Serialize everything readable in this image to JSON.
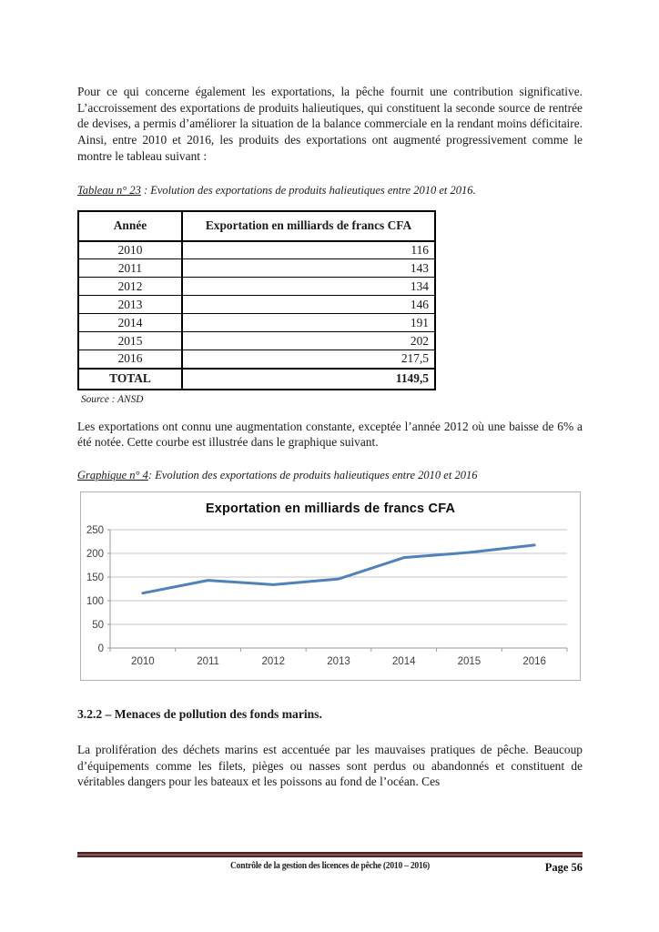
{
  "page": {
    "paragraph1": "Pour ce qui concerne également les exportations, la pêche fournit une contribution significative. L’accroissement des exportations de produits halieutiques, qui constituent la seconde source de rentrée de devises, a permis d’améliorer la situation de la balance commerciale en la rendant moins déficitaire. Ainsi, entre 2010 et 2016, les produits des exportations ont augmenté progressivement comme le montre le tableau suivant :",
    "table_caption": {
      "label": "Tableau n° 23",
      "rest": " : Evolution des exportations de produits halieutiques entre 2010 et 2016."
    },
    "table": {
      "headers": [
        "Année",
        "Exportation en milliards de francs CFA"
      ],
      "rows": [
        {
          "year": "2010",
          "value": "116"
        },
        {
          "year": "2011",
          "value": "143"
        },
        {
          "year": "2012",
          "value": "134"
        },
        {
          "year": "2013",
          "value": "146"
        },
        {
          "year": "2014",
          "value": "191"
        },
        {
          "year": "2015",
          "value": "202"
        },
        {
          "year": "2016",
          "value": "217,5"
        }
      ],
      "total_label": "TOTAL",
      "total_value": "1149,5"
    },
    "source_note": "Source : ANSD",
    "paragraph2": "Les exportations ont connu une augmentation constante, exceptée l’année 2012 où une baisse de 6% a été notée. Cette courbe est illustrée dans le graphique suivant.",
    "chart_caption": {
      "label": "Graphique  n° 4",
      "rest": ": Evolution des exportations de produits halieutiques entre 2010 et 2016"
    },
    "section_heading": "3.2.2 – Menaces de pollution des fonds marins.",
    "paragraph3": "La prolifération des déchets marins est accentuée par les mauvaises pratiques de pêche. Beaucoup d’équipements comme les filets, pièges ou nasses sont perdus ou abandonnés et constituent de véritables dangers pour les bateaux et les poissons au fond de l’océan. Ces",
    "footer": {
      "doc_title": "Contrôle de la gestion des licences de pêche (2010 – 2016)",
      "page_label": "Page 56"
    }
  },
  "chart_data": {
    "type": "line",
    "title": "Exportation en milliards de francs CFA",
    "categories": [
      "2010",
      "2011",
      "2012",
      "2013",
      "2014",
      "2015",
      "2016"
    ],
    "values": [
      116,
      143,
      134,
      146,
      191,
      202,
      217.5
    ],
    "xlabel": "",
    "ylabel": "",
    "ylim": [
      0,
      250
    ],
    "ytick_step": 50,
    "grid": true,
    "legend": "none",
    "line_color": "#4f81bd",
    "gridline_color": "#c6c6c6",
    "axis_color": "#9a9a9a",
    "tick_label_color": "#3f3f3f"
  },
  "colors": {
    "footer_rule": "#4e2123",
    "body_text": "#1a1a1a",
    "table_border": "#000000"
  }
}
